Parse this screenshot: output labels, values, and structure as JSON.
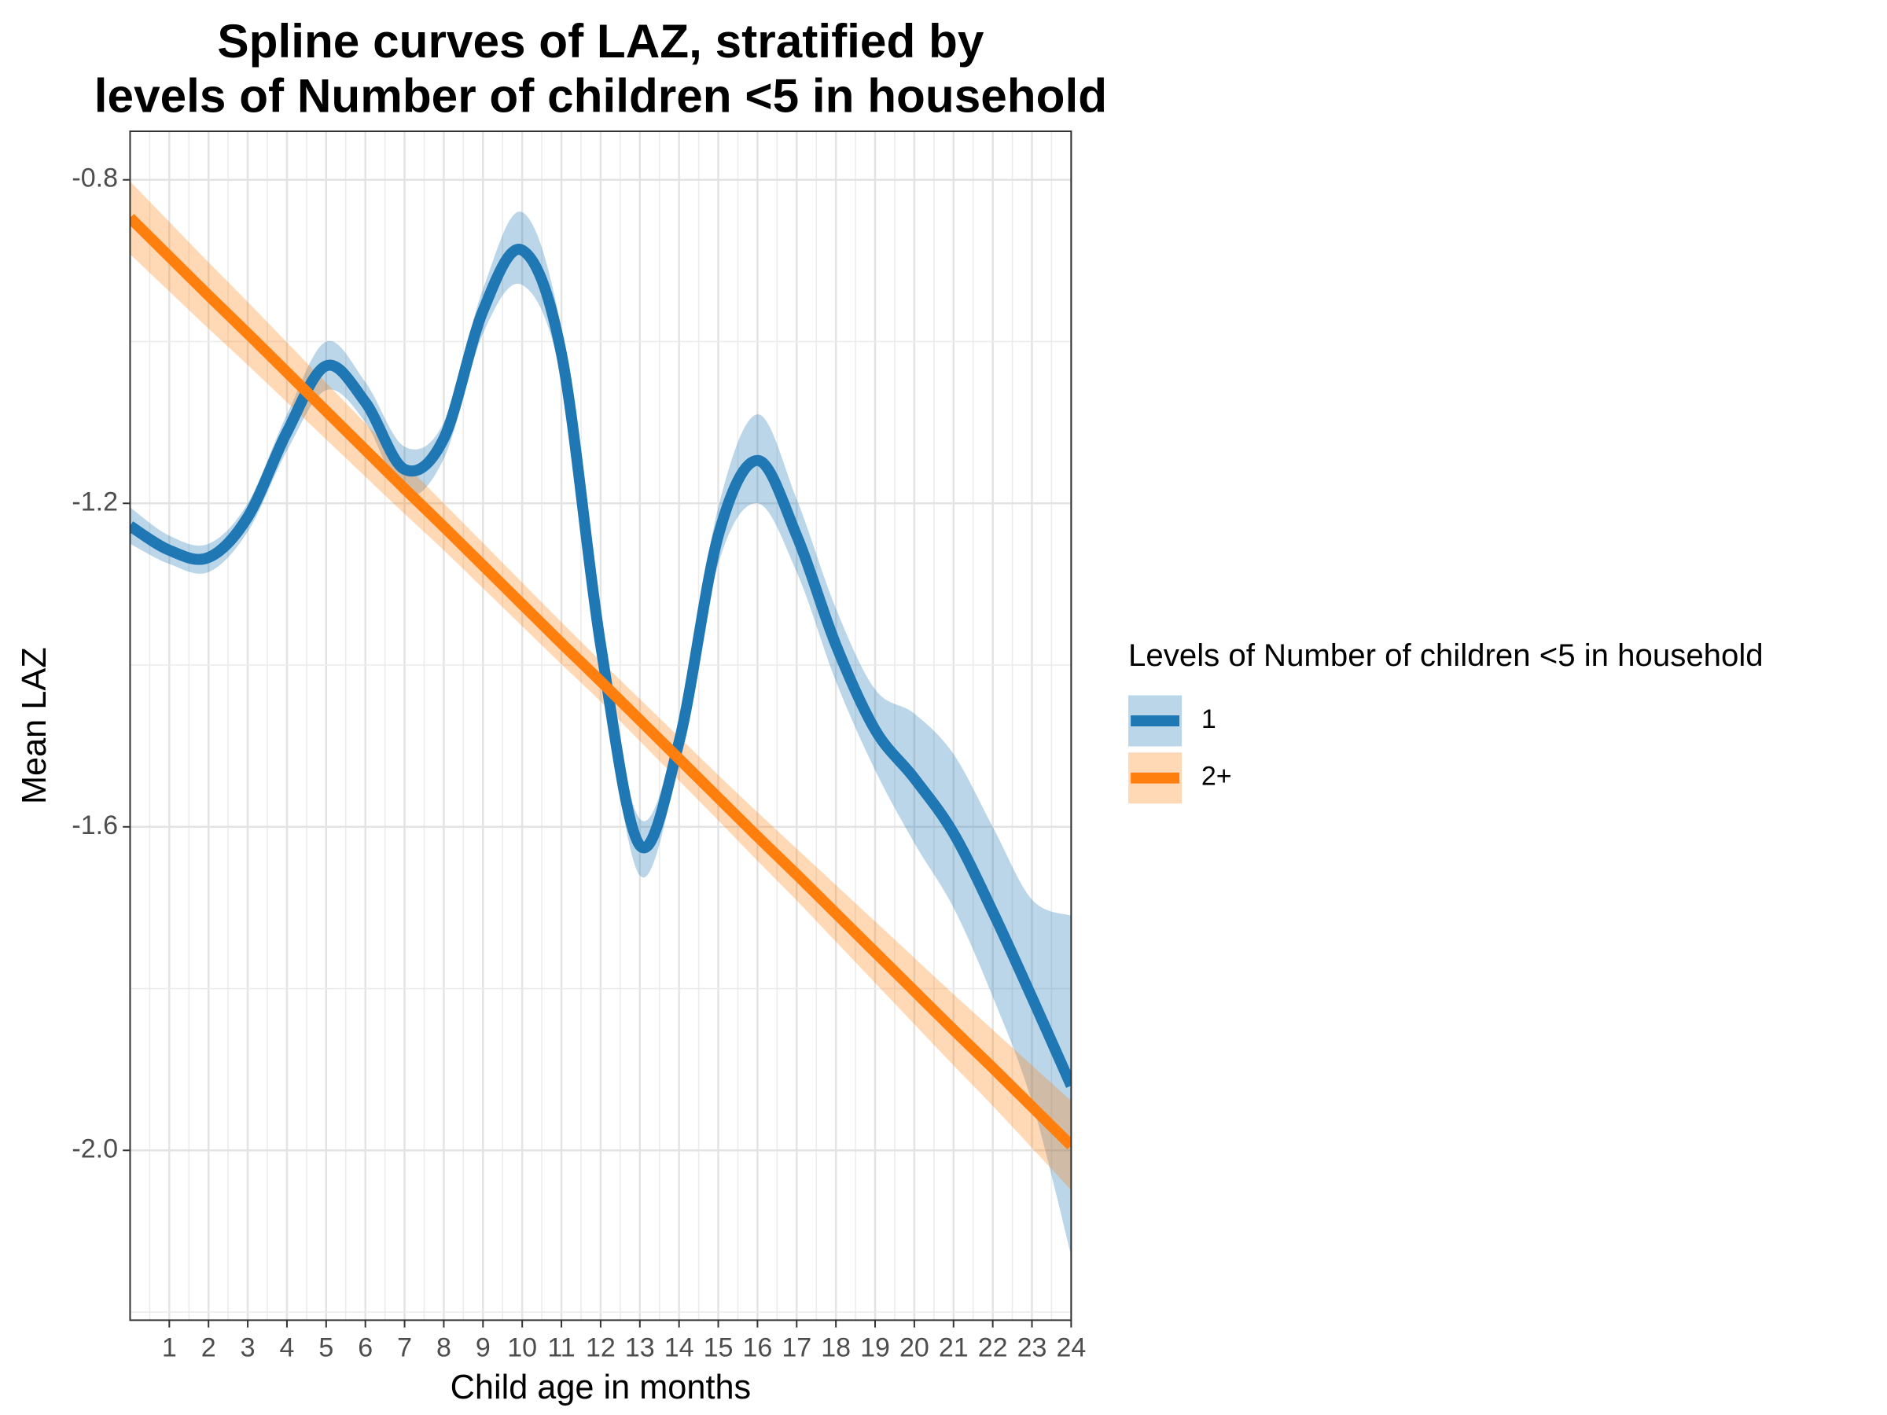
{
  "chart_data": {
    "type": "line",
    "title": [
      "Spline curves of LAZ, stratified by",
      "levels of Number of children <5 in household"
    ],
    "x_label": "Child age in months",
    "y_label": "Mean LAZ",
    "legend_title": "Levels of Number of children <5 in household",
    "legend_position": "right",
    "grid": true,
    "x": [
      0,
      1,
      2,
      3,
      4,
      5,
      6,
      7,
      8,
      9,
      10,
      11,
      12,
      13,
      14,
      15,
      16,
      17,
      18,
      19,
      20,
      21,
      22,
      23,
      24
    ],
    "xlim": [
      0,
      24
    ],
    "xticks": [
      1,
      2,
      3,
      4,
      5,
      6,
      7,
      8,
      9,
      10,
      11,
      12,
      13,
      14,
      15,
      16,
      17,
      18,
      19,
      20,
      21,
      22,
      23,
      24
    ],
    "ylim": [
      -2.21,
      -0.74
    ],
    "yticks": [
      -0.8,
      -1.2,
      -1.6,
      {
        "value": -2.0,
        "label": "-2.0"
      }
    ],
    "series": [
      {
        "name": "1",
        "color": "#1f77b4",
        "values": [
          -1.228,
          -1.258,
          -1.267,
          -1.217,
          -1.112,
          -1.03,
          -1.075,
          -1.158,
          -1.12,
          -0.962,
          -0.887,
          -1.015,
          -1.375,
          -1.623,
          -1.495,
          -1.24,
          -1.147,
          -1.24,
          -1.375,
          -1.48,
          -1.54,
          -1.608,
          -1.705,
          -1.811,
          -1.92
        ],
        "upper": [
          -1.205,
          -1.24,
          -1.25,
          -1.2,
          -1.09,
          -1.0,
          -1.05,
          -1.13,
          -1.1,
          -0.935,
          -0.84,
          -0.985,
          -1.355,
          -1.59,
          -1.47,
          -1.205,
          -1.09,
          -1.195,
          -1.33,
          -1.43,
          -1.46,
          -1.51,
          -1.6,
          -1.69,
          -1.71
        ],
        "lower": [
          -1.25,
          -1.275,
          -1.285,
          -1.235,
          -1.135,
          -1.06,
          -1.1,
          -1.19,
          -1.145,
          -0.99,
          -0.93,
          -1.045,
          -1.4,
          -1.66,
          -1.52,
          -1.275,
          -1.2,
          -1.285,
          -1.42,
          -1.53,
          -1.62,
          -1.7,
          -1.81,
          -1.94,
          -2.13
        ]
      },
      {
        "name": "2+",
        "color": "#ff7f0e",
        "values": [
          -0.847,
          -0.895,
          -0.943,
          -0.99,
          -1.038,
          -1.086,
          -1.134,
          -1.182,
          -1.229,
          -1.277,
          -1.325,
          -1.373,
          -1.42,
          -1.468,
          -1.516,
          -1.564,
          -1.612,
          -1.659,
          -1.707,
          -1.755,
          -1.803,
          -1.851,
          -1.898,
          -1.946,
          -1.994
        ],
        "upper": [
          -0.802,
          -0.852,
          -0.902,
          -0.951,
          -1.001,
          -1.051,
          -1.101,
          -1.151,
          -1.2,
          -1.249,
          -1.298,
          -1.347,
          -1.395,
          -1.442,
          -1.489,
          -1.536,
          -1.582,
          -1.627,
          -1.672,
          -1.717,
          -1.762,
          -1.807,
          -1.851,
          -1.895,
          -1.939
        ],
        "lower": [
          -0.892,
          -0.938,
          -0.984,
          -1.029,
          -1.075,
          -1.121,
          -1.167,
          -1.213,
          -1.258,
          -1.305,
          -1.352,
          -1.399,
          -1.445,
          -1.494,
          -1.543,
          -1.592,
          -1.642,
          -1.691,
          -1.742,
          -1.793,
          -1.844,
          -1.895,
          -1.945,
          -1.997,
          -2.049
        ]
      }
    ]
  }
}
